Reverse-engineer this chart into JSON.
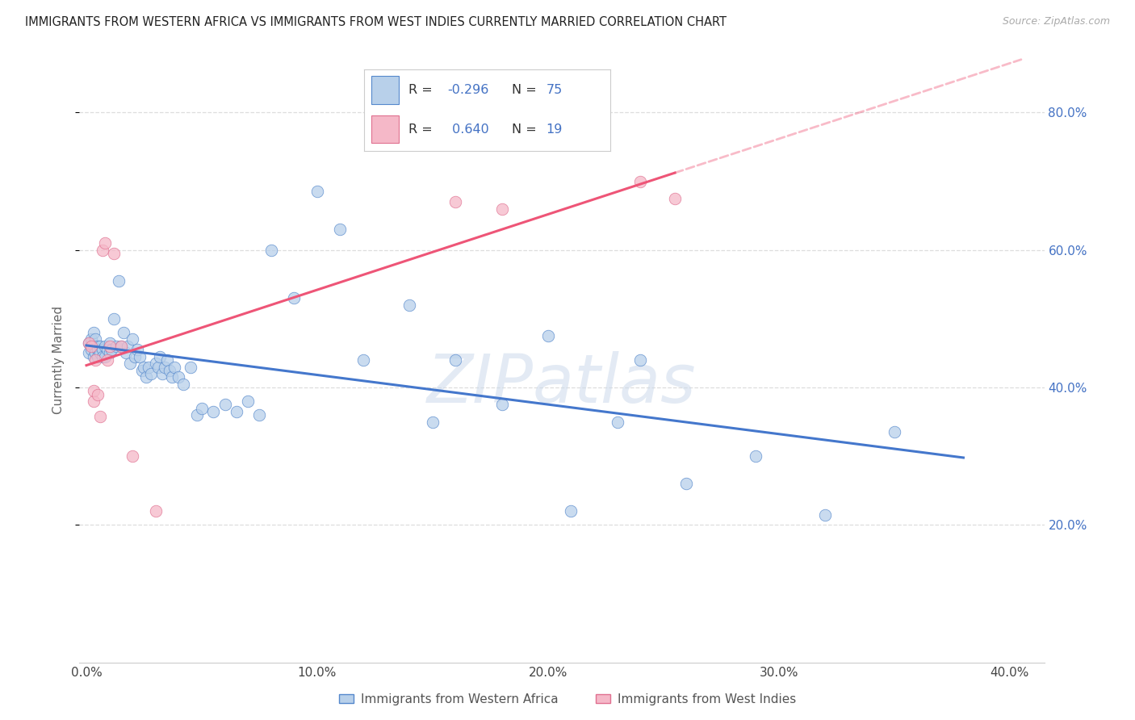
{
  "title": "IMMIGRANTS FROM WESTERN AFRICA VS IMMIGRANTS FROM WEST INDIES CURRENTLY MARRIED CORRELATION CHART",
  "source": "Source: ZipAtlas.com",
  "xlabel_blue": "Immigrants from Western Africa",
  "xlabel_pink": "Immigrants from West Indies",
  "ylabel": "Currently Married",
  "legend_blue_R": "-0.296",
  "legend_blue_N": "75",
  "legend_pink_R": "0.640",
  "legend_pink_N": "19",
  "blue_face_color": "#b8d0ea",
  "pink_face_color": "#f5b8c8",
  "blue_edge_color": "#5588cc",
  "pink_edge_color": "#e07090",
  "blue_line_color": "#4477cc",
  "pink_line_color": "#ee5577",
  "watermark_color": "#ccdaeb",
  "title_color": "#222222",
  "source_color": "#aaaaaa",
  "right_tick_color": "#4472c4",
  "grid_color": "#dddddd",
  "R_N_color": "#4472c4",
  "blue_x": [
    0.001,
    0.001,
    0.002,
    0.002,
    0.003,
    0.003,
    0.003,
    0.004,
    0.004,
    0.005,
    0.005,
    0.005,
    0.006,
    0.006,
    0.007,
    0.007,
    0.008,
    0.008,
    0.009,
    0.01,
    0.01,
    0.011,
    0.012,
    0.013,
    0.014,
    0.015,
    0.016,
    0.017,
    0.018,
    0.019,
    0.02,
    0.021,
    0.022,
    0.023,
    0.024,
    0.025,
    0.026,
    0.027,
    0.028,
    0.03,
    0.031,
    0.032,
    0.033,
    0.034,
    0.035,
    0.036,
    0.037,
    0.038,
    0.04,
    0.042,
    0.045,
    0.048,
    0.05,
    0.055,
    0.06,
    0.065,
    0.07,
    0.075,
    0.08,
    0.09,
    0.1,
    0.11,
    0.12,
    0.14,
    0.15,
    0.16,
    0.18,
    0.2,
    0.21,
    0.23,
    0.24,
    0.26,
    0.29,
    0.32,
    0.35
  ],
  "blue_y": [
    0.465,
    0.45,
    0.47,
    0.455,
    0.48,
    0.46,
    0.445,
    0.47,
    0.45,
    0.46,
    0.455,
    0.445,
    0.46,
    0.45,
    0.455,
    0.445,
    0.46,
    0.445,
    0.455,
    0.465,
    0.45,
    0.455,
    0.5,
    0.46,
    0.555,
    0.46,
    0.48,
    0.45,
    0.46,
    0.435,
    0.47,
    0.445,
    0.455,
    0.445,
    0.425,
    0.43,
    0.415,
    0.43,
    0.42,
    0.435,
    0.43,
    0.445,
    0.42,
    0.43,
    0.44,
    0.425,
    0.415,
    0.43,
    0.415,
    0.405,
    0.43,
    0.36,
    0.37,
    0.365,
    0.375,
    0.365,
    0.38,
    0.36,
    0.6,
    0.53,
    0.685,
    0.63,
    0.44,
    0.52,
    0.35,
    0.44,
    0.375,
    0.475,
    0.22,
    0.35,
    0.44,
    0.26,
    0.3,
    0.215,
    0.335
  ],
  "pink_x": [
    0.001,
    0.002,
    0.003,
    0.003,
    0.004,
    0.005,
    0.006,
    0.007,
    0.008,
    0.009,
    0.01,
    0.012,
    0.015,
    0.02,
    0.03,
    0.16,
    0.18,
    0.24,
    0.255
  ],
  "pink_y": [
    0.465,
    0.46,
    0.38,
    0.395,
    0.44,
    0.39,
    0.358,
    0.6,
    0.61,
    0.44,
    0.46,
    0.595,
    0.46,
    0.3,
    0.22,
    0.67,
    0.66,
    0.7,
    0.675
  ]
}
